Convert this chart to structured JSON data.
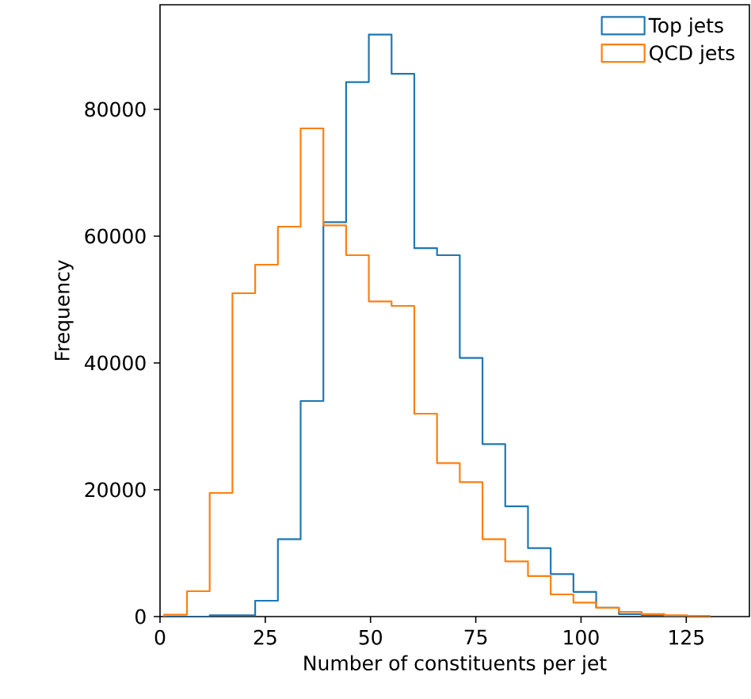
{
  "chart_data": {
    "type": "histogram",
    "xlabel": "Number of constituents per jet",
    "ylabel": "Frequency",
    "bins": [
      1,
      6.4,
      11.8,
      17.2,
      22.6,
      28,
      33.4,
      38.8,
      44.2,
      49.6,
      55,
      60.4,
      65.8,
      71.2,
      76.6,
      82,
      87.4,
      92.8,
      98.2,
      103.6,
      109,
      114.4,
      119.8,
      125.2,
      130.6
    ],
    "series": [
      {
        "name": "Top jets",
        "color": "#1f77b4",
        "values": [
          0,
          0,
          200,
          200,
          2500,
          12200,
          34000,
          62200,
          84300,
          91800,
          85600,
          58100,
          57000,
          40800,
          27200,
          17400,
          10800,
          6700,
          3900,
          1400,
          400,
          200,
          100,
          0
        ]
      },
      {
        "name": "QCD jets",
        "color": "#ff7f0e",
        "values": [
          300,
          4000,
          19500,
          51000,
          55500,
          61500,
          77000,
          61700,
          57000,
          49700,
          49000,
          32000,
          24200,
          21200,
          12200,
          8700,
          6400,
          3500,
          2200,
          1400,
          750,
          400,
          200,
          100
        ]
      }
    ],
    "xlim": [
      0,
      140
    ],
    "ylim": [
      0,
      96500
    ],
    "xticks": [
      0,
      25,
      50,
      75,
      100,
      125
    ],
    "yticks": [
      0,
      20000,
      40000,
      60000,
      80000
    ],
    "grid": false,
    "legend": "top right"
  }
}
